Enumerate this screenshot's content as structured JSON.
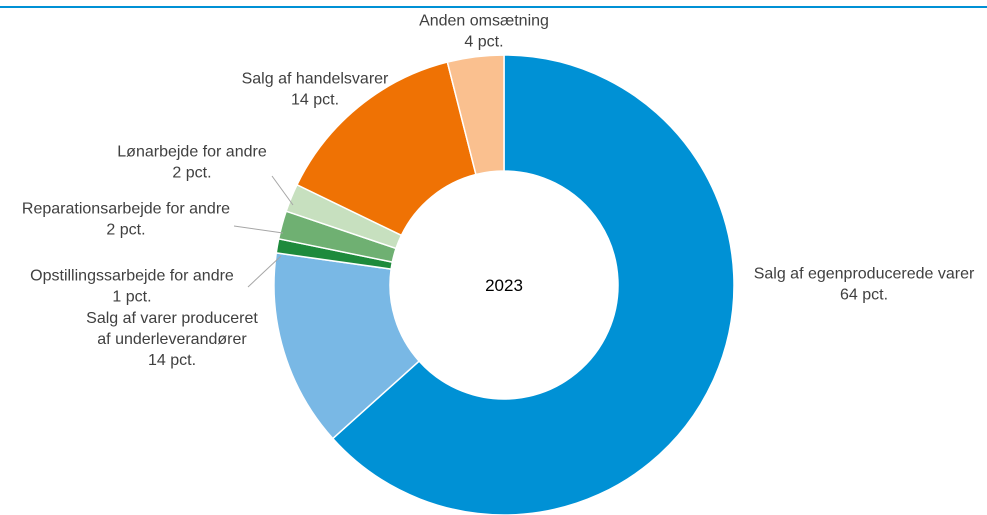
{
  "chart_data": {
    "type": "pie",
    "variant": "donut",
    "center_label": "2023",
    "slices": [
      {
        "name": "Salg af egenproducerede varer",
        "value": 64,
        "value_label": "64 pct.",
        "color": "#0091d5"
      },
      {
        "name": "Salg af varer produceret af underleverandører",
        "name_lines": [
          "Salg af varer produceret",
          "af  underleverandører"
        ],
        "value": 14,
        "value_label": "14 pct.",
        "color": "#79b8e5"
      },
      {
        "name": "Opstillingssarbejde for andre",
        "value": 1,
        "value_label": "1 pct.",
        "color": "#1e8a3c"
      },
      {
        "name": "Reparationsarbejde for andre",
        "value": 2,
        "value_label": "2 pct.",
        "color": "#6fb072"
      },
      {
        "name": "Lønarbejde  for andre",
        "value": 2,
        "value_label": "2 pct.",
        "color": "#c7e0bf"
      },
      {
        "name": "Salg af handelsvarer",
        "value": 14,
        "value_label": "14 pct.",
        "color": "#ef7204"
      },
      {
        "name": "Anden omsætning",
        "value": 4,
        "value_label": "4 pct.",
        "color": "#fac08f"
      }
    ]
  },
  "colors": {
    "top_rule": "#0091d5",
    "leader_line": "#a6a6a6"
  }
}
